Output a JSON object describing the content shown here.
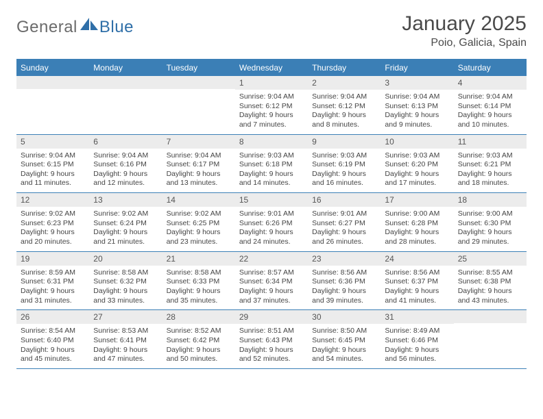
{
  "logo": {
    "general": "General",
    "blue": "Blue"
  },
  "title": "January 2025",
  "location": "Poio, Galicia, Spain",
  "colors": {
    "header_bg": "#3b7fb6",
    "daynum_bg": "#ececec",
    "rule": "#3b7fb6",
    "logo_gray": "#6b6b6b",
    "logo_blue": "#2f6fa8"
  },
  "dayNames": [
    "Sunday",
    "Monday",
    "Tuesday",
    "Wednesday",
    "Thursday",
    "Friday",
    "Saturday"
  ],
  "weeks": [
    [
      {
        "n": "",
        "sr": "",
        "ss": "",
        "dl": ""
      },
      {
        "n": "",
        "sr": "",
        "ss": "",
        "dl": ""
      },
      {
        "n": "",
        "sr": "",
        "ss": "",
        "dl": ""
      },
      {
        "n": "1",
        "sr": "9:04 AM",
        "ss": "6:12 PM",
        "dl": "9 hours and 7 minutes."
      },
      {
        "n": "2",
        "sr": "9:04 AM",
        "ss": "6:12 PM",
        "dl": "9 hours and 8 minutes."
      },
      {
        "n": "3",
        "sr": "9:04 AM",
        "ss": "6:13 PM",
        "dl": "9 hours and 9 minutes."
      },
      {
        "n": "4",
        "sr": "9:04 AM",
        "ss": "6:14 PM",
        "dl": "9 hours and 10 minutes."
      }
    ],
    [
      {
        "n": "5",
        "sr": "9:04 AM",
        "ss": "6:15 PM",
        "dl": "9 hours and 11 minutes."
      },
      {
        "n": "6",
        "sr": "9:04 AM",
        "ss": "6:16 PM",
        "dl": "9 hours and 12 minutes."
      },
      {
        "n": "7",
        "sr": "9:04 AM",
        "ss": "6:17 PM",
        "dl": "9 hours and 13 minutes."
      },
      {
        "n": "8",
        "sr": "9:03 AM",
        "ss": "6:18 PM",
        "dl": "9 hours and 14 minutes."
      },
      {
        "n": "9",
        "sr": "9:03 AM",
        "ss": "6:19 PM",
        "dl": "9 hours and 16 minutes."
      },
      {
        "n": "10",
        "sr": "9:03 AM",
        "ss": "6:20 PM",
        "dl": "9 hours and 17 minutes."
      },
      {
        "n": "11",
        "sr": "9:03 AM",
        "ss": "6:21 PM",
        "dl": "9 hours and 18 minutes."
      }
    ],
    [
      {
        "n": "12",
        "sr": "9:02 AM",
        "ss": "6:23 PM",
        "dl": "9 hours and 20 minutes."
      },
      {
        "n": "13",
        "sr": "9:02 AM",
        "ss": "6:24 PM",
        "dl": "9 hours and 21 minutes."
      },
      {
        "n": "14",
        "sr": "9:02 AM",
        "ss": "6:25 PM",
        "dl": "9 hours and 23 minutes."
      },
      {
        "n": "15",
        "sr": "9:01 AM",
        "ss": "6:26 PM",
        "dl": "9 hours and 24 minutes."
      },
      {
        "n": "16",
        "sr": "9:01 AM",
        "ss": "6:27 PM",
        "dl": "9 hours and 26 minutes."
      },
      {
        "n": "17",
        "sr": "9:00 AM",
        "ss": "6:28 PM",
        "dl": "9 hours and 28 minutes."
      },
      {
        "n": "18",
        "sr": "9:00 AM",
        "ss": "6:30 PM",
        "dl": "9 hours and 29 minutes."
      }
    ],
    [
      {
        "n": "19",
        "sr": "8:59 AM",
        "ss": "6:31 PM",
        "dl": "9 hours and 31 minutes."
      },
      {
        "n": "20",
        "sr": "8:58 AM",
        "ss": "6:32 PM",
        "dl": "9 hours and 33 minutes."
      },
      {
        "n": "21",
        "sr": "8:58 AM",
        "ss": "6:33 PM",
        "dl": "9 hours and 35 minutes."
      },
      {
        "n": "22",
        "sr": "8:57 AM",
        "ss": "6:34 PM",
        "dl": "9 hours and 37 minutes."
      },
      {
        "n": "23",
        "sr": "8:56 AM",
        "ss": "6:36 PM",
        "dl": "9 hours and 39 minutes."
      },
      {
        "n": "24",
        "sr": "8:56 AM",
        "ss": "6:37 PM",
        "dl": "9 hours and 41 minutes."
      },
      {
        "n": "25",
        "sr": "8:55 AM",
        "ss": "6:38 PM",
        "dl": "9 hours and 43 minutes."
      }
    ],
    [
      {
        "n": "26",
        "sr": "8:54 AM",
        "ss": "6:40 PM",
        "dl": "9 hours and 45 minutes."
      },
      {
        "n": "27",
        "sr": "8:53 AM",
        "ss": "6:41 PM",
        "dl": "9 hours and 47 minutes."
      },
      {
        "n": "28",
        "sr": "8:52 AM",
        "ss": "6:42 PM",
        "dl": "9 hours and 50 minutes."
      },
      {
        "n": "29",
        "sr": "8:51 AM",
        "ss": "6:43 PM",
        "dl": "9 hours and 52 minutes."
      },
      {
        "n": "30",
        "sr": "8:50 AM",
        "ss": "6:45 PM",
        "dl": "9 hours and 54 minutes."
      },
      {
        "n": "31",
        "sr": "8:49 AM",
        "ss": "6:46 PM",
        "dl": "9 hours and 56 minutes."
      },
      {
        "n": "",
        "sr": "",
        "ss": "",
        "dl": ""
      }
    ]
  ],
  "labels": {
    "sunrise": "Sunrise:",
    "sunset": "Sunset:",
    "daylight": "Daylight:"
  }
}
